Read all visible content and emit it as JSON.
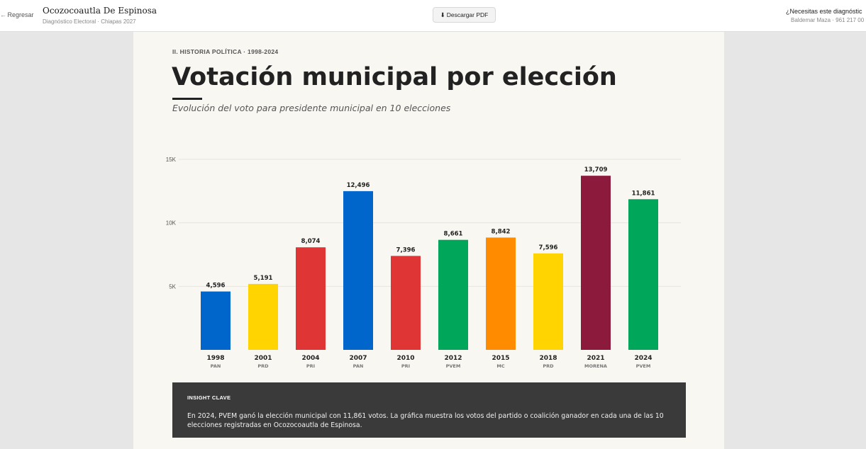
{
  "header": {
    "back_label": "Regresar",
    "title": "Ocozocoautla De Espinosa",
    "subtitle": "Diagnóstico Electoral · Chiapas 2027",
    "pdf_label": "Descargar PDF",
    "help_text": "¿Necesitas este diagnóstic",
    "contact_text": "Baldemar Maza · 961 217 00"
  },
  "section": {
    "kicker": "II. HISTORIA POLÍTICA · 1998-2024",
    "title": "Votación municipal por elección",
    "subtitle": "Evolución del voto para presidente municipal en 10 elecciones"
  },
  "chart_data": {
    "type": "bar",
    "categories": [
      "1998",
      "2001",
      "2004",
      "2007",
      "2010",
      "2012",
      "2015",
      "2018",
      "2021",
      "2024"
    ],
    "parties": [
      "PAN",
      "PRD",
      "PRI",
      "PAN",
      "PRI",
      "PVEM",
      "MC",
      "PRD",
      "MORENA",
      "PVEM"
    ],
    "values": [
      4596,
      5191,
      8074,
      12496,
      7396,
      8661,
      8842,
      7596,
      13709,
      11861
    ],
    "value_labels": [
      "4,596",
      "5,191",
      "8,074",
      "12,496",
      "7,396",
      "8,661",
      "8,842",
      "7,596",
      "13,709",
      "11,861"
    ],
    "colors": [
      "#0066cc",
      "#ffd400",
      "#e03535",
      "#0066cc",
      "#e03535",
      "#00a65a",
      "#ff8c00",
      "#ffd400",
      "#8b1a3c",
      "#00a65a"
    ],
    "yticks": [
      5000,
      10000,
      15000
    ],
    "ytick_labels": [
      "5K",
      "10K",
      "15K"
    ],
    "ylim": [
      0,
      15000
    ],
    "grid": true
  },
  "insight": {
    "label": "INSIGHT CLAVE",
    "text": "En 2024, PVEM ganó la elección municipal con 11,861 votos. La gráfica muestra los votos del partido o coalición ganador en cada una de las 10 elecciones registradas en Ocozocoautla de Espinosa."
  }
}
